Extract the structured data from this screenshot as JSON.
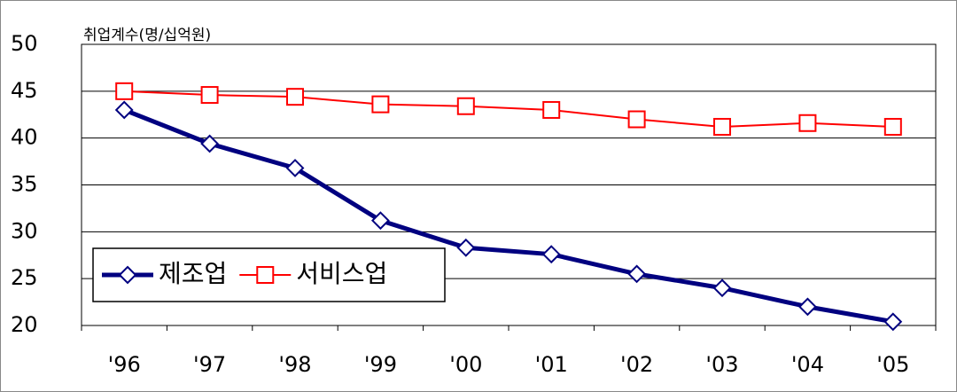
{
  "chart_data": {
    "type": "line",
    "y_label": "취업계수(명/십억원)",
    "categories": [
      "'96",
      "'97",
      "'98",
      "'99",
      "'00",
      "'01",
      "'02",
      "'03",
      "'04",
      "'05"
    ],
    "series": [
      {
        "name": "제조업",
        "color": "#000080",
        "marker": "diamond",
        "values": [
          43.0,
          39.4,
          36.8,
          31.2,
          28.3,
          27.6,
          25.5,
          24.0,
          22.0,
          20.4
        ]
      },
      {
        "name": "서비스업",
        "color": "#ff0000",
        "marker": "square",
        "values": [
          45.0,
          44.6,
          44.4,
          43.6,
          43.4,
          43.0,
          42.0,
          41.2,
          41.6,
          41.2
        ]
      }
    ],
    "ylim": [
      20,
      50
    ],
    "yticks": [
      20,
      25,
      30,
      35,
      40,
      45,
      50
    ],
    "grid": true,
    "legend": "lower left"
  }
}
